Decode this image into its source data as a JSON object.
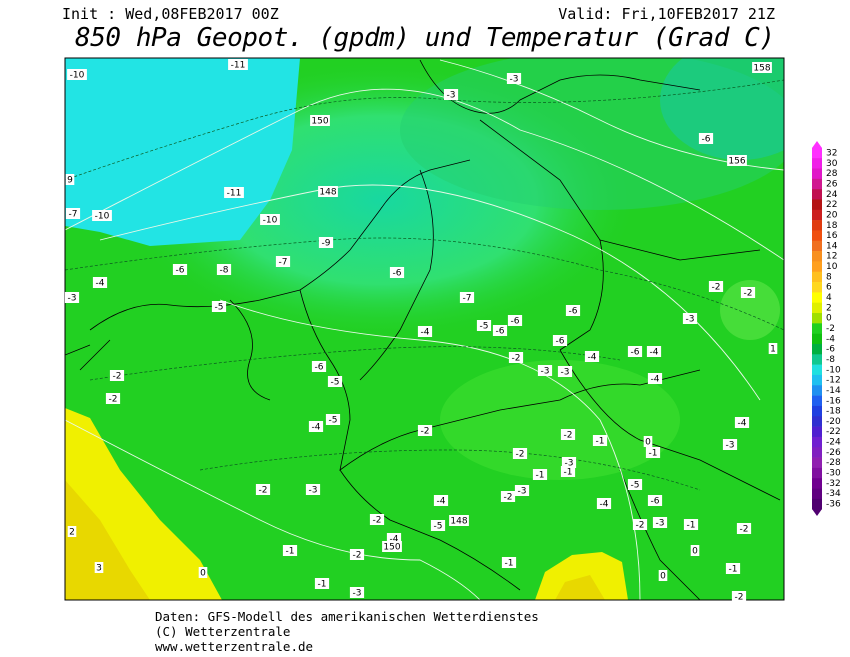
{
  "header": {
    "init": "Init : Wed,08FEB2017 00Z",
    "valid": "Valid: Fri,10FEB2017 21Z",
    "title": "850 hPa Geopot. (gpdm) und Temperatur (Grad C)"
  },
  "map": {
    "labels": [
      -10,
      -11,
      -3,
      -3,
      158,
      150,
      -6,
      156,
      9,
      -11,
      148,
      -7,
      -10,
      -10,
      -9,
      -7,
      -6,
      -8,
      -6,
      -4,
      -2,
      -2,
      -3,
      -7,
      -5,
      -6,
      -3,
      -5,
      -6,
      -6,
      -4,
      -6,
      1,
      -2,
      -4,
      -6,
      -4,
      -6,
      -2,
      -3,
      -3,
      -5,
      -4,
      -2,
      -5,
      -4,
      -4,
      -2,
      -2,
      -1,
      0,
      -1,
      -3,
      -2,
      -3,
      -1,
      -1,
      -2,
      -3,
      -3,
      -2,
      -5,
      -4,
      -4,
      -6,
      148,
      -5,
      -2,
      -4,
      -2,
      -3,
      -1,
      -2,
      2,
      150,
      -1,
      -2,
      0,
      -1,
      3,
      0,
      -1,
      -3,
      0,
      -1,
      -2
    ]
  },
  "colorbar": [
    {
      "label": "32",
      "color": "#ff30ff"
    },
    {
      "label": "30",
      "color": "#f020e8"
    },
    {
      "label": "28",
      "color": "#e018c8"
    },
    {
      "label": "26",
      "color": "#d01890"
    },
    {
      "label": "24",
      "color": "#c01050"
    },
    {
      "label": "22",
      "color": "#b41414"
    },
    {
      "label": "20",
      "color": "#cc2020"
    },
    {
      "label": "18",
      "color": "#e03c10"
    },
    {
      "label": "16",
      "color": "#f05010"
    },
    {
      "label": "14",
      "color": "#f07020"
    },
    {
      "label": "12",
      "color": "#f89020"
    },
    {
      "label": "10",
      "color": "#ffa020"
    },
    {
      "label": "8",
      "color": "#ffc020"
    },
    {
      "label": "6",
      "color": "#ffd820"
    },
    {
      "label": "4",
      "color": "#ffff00"
    },
    {
      "label": "2",
      "color": "#e0f000"
    },
    {
      "label": "0",
      "color": "#a0e000"
    },
    {
      "label": "-2",
      "color": "#20d020"
    },
    {
      "label": "-4",
      "color": "#10c010"
    },
    {
      "label": "-6",
      "color": "#00b040"
    },
    {
      "label": "-8",
      "color": "#10c890"
    },
    {
      "label": "-10",
      "color": "#20e0e0"
    },
    {
      "label": "-12",
      "color": "#20c0f0"
    },
    {
      "label": "-14",
      "color": "#2090f0"
    },
    {
      "label": "-16",
      "color": "#2060f0"
    },
    {
      "label": "-18",
      "color": "#2040e0"
    },
    {
      "label": "-20",
      "color": "#3030d0"
    },
    {
      "label": "-22",
      "color": "#5020d0"
    },
    {
      "label": "-24",
      "color": "#7020d0"
    },
    {
      "label": "-26",
      "color": "#8020c0"
    },
    {
      "label": "-28",
      "color": "#9020b0"
    },
    {
      "label": "-30",
      "color": "#8010a0"
    },
    {
      "label": "-32",
      "color": "#700090"
    },
    {
      "label": "-34",
      "color": "#600080"
    },
    {
      "label": "-36",
      "color": "#500070"
    }
  ],
  "footer": [
    "Daten: GFS-Modell des amerikanischen Wetterdienstes",
    "(C) Wetterzentrale",
    "www.wetterzentrale.de"
  ]
}
